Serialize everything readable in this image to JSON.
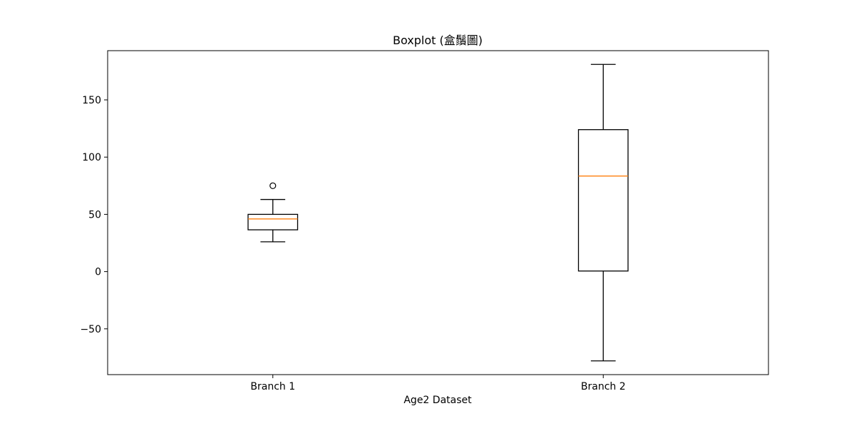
{
  "chart_data": {
    "type": "boxplot",
    "title": "Boxplot (盒鬚圖)",
    "xlabel": "Age2 Dataset",
    "ylabel": "",
    "categories": [
      "Branch 1",
      "Branch 2"
    ],
    "ylim": [
      -90,
      193
    ],
    "yticks": [
      -50,
      0,
      50,
      100,
      150
    ],
    "ytick_labels": [
      "−50",
      "0",
      "50",
      "100",
      "150"
    ],
    "grid": false,
    "colors": {
      "box": "#000000",
      "median": "#ff7f0e",
      "whisker": "#000000",
      "flier": "#000000"
    },
    "boxes": [
      {
        "category": "Branch 1",
        "whisker_low": 26,
        "q1": 36.5,
        "median": 46,
        "q3": 50,
        "whisker_high": 63,
        "fliers": [
          75
        ]
      },
      {
        "category": "Branch 2",
        "whisker_low": -78,
        "q1": 0.5,
        "median": 83.5,
        "q3": 124,
        "whisker_high": 181,
        "fliers": []
      }
    ]
  }
}
